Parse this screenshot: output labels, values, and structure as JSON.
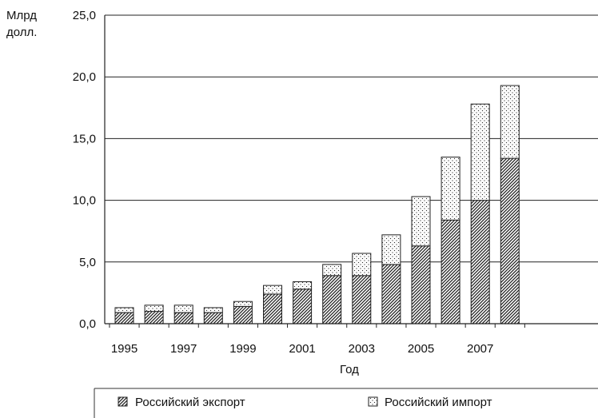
{
  "chart_data": {
    "type": "bar",
    "stacked": true,
    "ylabel": "Млрд долл.",
    "ylabel_lines": [
      "Млрд",
      "долл."
    ],
    "xlabel": "Год",
    "ylim": [
      0,
      25
    ],
    "y_ticks": [
      "0,0",
      "5,0",
      "10,0",
      "15,0",
      "20,0",
      "25,0"
    ],
    "y_tick_values": [
      0,
      5,
      10,
      15,
      20,
      25
    ],
    "grid": "horizontal",
    "x_tick_labels": [
      "1995",
      "1997",
      "1999",
      "2001",
      "2003",
      "2005",
      "2007"
    ],
    "categories": [
      "1995",
      "1996",
      "1997",
      "1998",
      "1999",
      "2000",
      "2001",
      "2002",
      "2003",
      "2004",
      "2005",
      "2006",
      "2007",
      "2008"
    ],
    "series": [
      {
        "name": "Российский экспорт",
        "pattern": "hatch",
        "values": [
          0.9,
          1.0,
          0.9,
          0.9,
          1.4,
          2.4,
          2.8,
          3.9,
          3.9,
          4.8,
          6.3,
          8.4,
          10.0,
          13.4
        ]
      },
      {
        "name": "Российский импорт",
        "pattern": "dots",
        "values": [
          0.4,
          0.5,
          0.6,
          0.4,
          0.4,
          0.7,
          0.6,
          0.9,
          1.8,
          2.4,
          4.0,
          5.1,
          7.8,
          5.9
        ]
      }
    ],
    "legend_position": "bottom"
  }
}
